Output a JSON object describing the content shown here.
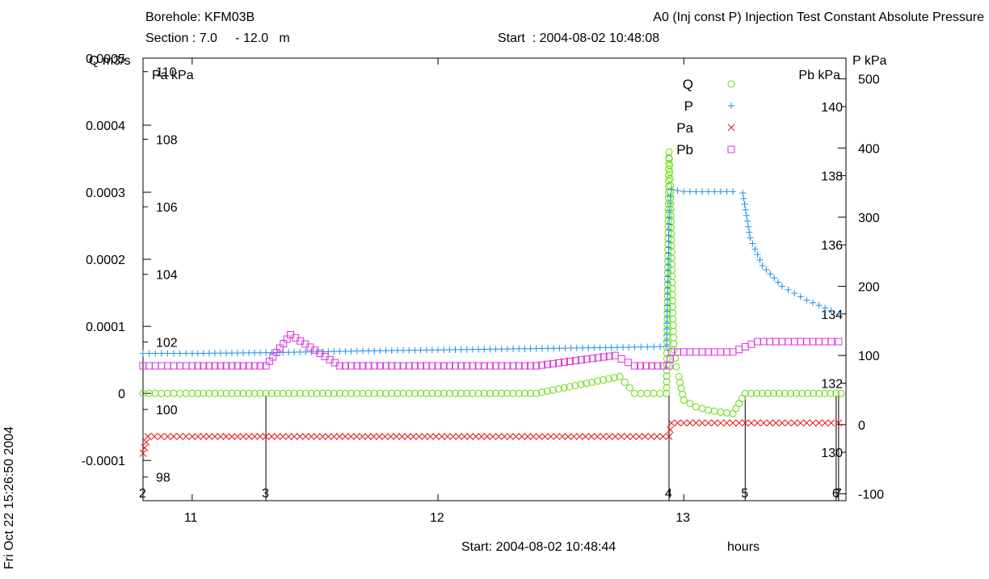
{
  "header": {
    "borehole": "Borehole: KFM03B",
    "section": "Section : 7.0     - 12.0   m",
    "test_title": "A0 (Inj const P) Injection Test Constant Absolute Pressure",
    "start_top": "Start  : 2004-08-02 10:48:08"
  },
  "footer": {
    "start_bottom": "Start: 2004-08-02 10:48:44",
    "hours_label": "hours",
    "timestamp": "Fri Oct 22 15:26:50 2004"
  },
  "colors": {
    "Q": "#66dd11",
    "P": "#1e90e8",
    "Pa": "#ee1111",
    "Pb": "#dd33dd",
    "axis": "#000000"
  },
  "chart_data": {
    "type": "scatter",
    "x_axis": {
      "label": "hours",
      "range": [
        10.8,
        13.66
      ],
      "ticks": [
        11,
        12,
        13
      ],
      "tick_labels": [
        "11",
        "12",
        "13"
      ]
    },
    "axes": {
      "Q": {
        "label": "Q  m3/s",
        "range": [
          -0.00016,
          0.0005
        ],
        "ticks": [
          -0.0001,
          0,
          0.0001,
          0.0002,
          0.0003,
          0.0004,
          0.0005
        ],
        "tick_labels": [
          "-0.0001",
          "0",
          "0.0001",
          "0.0002",
          "0.0003",
          "0.0004",
          "0.0005"
        ]
      },
      "Pa": {
        "label": "Pa  kPa",
        "range": [
          97.3,
          110.4
        ],
        "ticks": [
          98,
          100,
          102,
          104,
          106,
          108,
          110
        ],
        "tick_labels": [
          "98",
          "100",
          "102",
          "104",
          "106",
          "108",
          "110"
        ]
      },
      "P": {
        "label": "P  kPa",
        "range": [
          -110,
          530
        ],
        "ticks": [
          -100,
          0,
          100,
          200,
          300,
          400,
          500
        ],
        "tick_labels": [
          "-100",
          "0",
          "100",
          "200",
          "300",
          "400",
          "500"
        ]
      },
      "Pb": {
        "label": "Pb  kPa",
        "range": [
          128.6,
          141.4
        ],
        "ticks": [
          130,
          132,
          134,
          136,
          138,
          140
        ],
        "tick_labels": [
          "130",
          "132",
          "134",
          "136",
          "138",
          "140"
        ]
      }
    },
    "legend": {
      "placement": "top-right",
      "entries": [
        {
          "name": "Q",
          "marker": "circle"
        },
        {
          "name": "P",
          "marker": "plus"
        },
        {
          "name": "Pa",
          "marker": "cross"
        },
        {
          "name": "Pb",
          "marker": "square"
        }
      ]
    },
    "events": [
      {
        "label": "2",
        "x": 10.8
      },
      {
        "label": "3",
        "x": 11.3
      },
      {
        "label": "4",
        "x": 12.94
      },
      {
        "label": "5",
        "x": 13.25
      },
      {
        "label": "6",
        "x": 13.62
      },
      {
        "label": "7",
        "x": 13.63
      }
    ],
    "series": [
      {
        "name": "Q",
        "axis": "Q",
        "marker": "circle",
        "x": [
          10.8,
          11.0,
          11.3,
          11.6,
          12.0,
          12.4,
          12.74,
          12.8,
          12.93,
          12.94,
          12.945,
          12.95,
          12.955,
          12.96,
          12.97,
          12.98,
          13.0,
          13.05,
          13.1,
          13.15,
          13.2,
          13.25,
          13.62,
          13.64
        ],
        "y": [
          0.0,
          0.0,
          0.0,
          0.0,
          0.0,
          0.0,
          2.5e-05,
          0.0,
          0.0,
          0.00036,
          0.00031,
          0.00022,
          0.00012,
          6.5e-05,
          4e-05,
          2.5e-05,
          -1e-05,
          -2e-05,
          -2.5e-05,
          -2.8e-05,
          -3e-05,
          0.0,
          0.0,
          0.0
        ]
      },
      {
        "name": "P",
        "axis": "P",
        "marker": "plus",
        "x": [
          10.8,
          11.0,
          11.3,
          11.6,
          12.0,
          12.4,
          12.8,
          12.93,
          12.94,
          12.945,
          12.95,
          13.0,
          13.1,
          13.2,
          13.24,
          13.27,
          13.32,
          13.4,
          13.5,
          13.6,
          13.63
        ],
        "y": [
          103,
          103,
          104,
          106,
          108,
          110,
          112,
          113,
          290,
          330,
          340,
          337,
          337,
          337,
          335,
          270,
          230,
          200,
          180,
          165,
          160
        ]
      },
      {
        "name": "Pa",
        "axis": "Pa",
        "marker": "cross",
        "x": [
          10.8,
          10.82,
          10.9,
          11.0,
          11.3,
          11.6,
          11.9,
          12.2,
          12.6,
          12.94,
          12.95,
          13.05,
          13.15,
          13.2,
          13.3,
          13.35,
          13.4,
          13.45,
          13.5,
          13.55,
          13.6,
          13.63
        ],
        "y": [
          98.7,
          99.2,
          99.2,
          99.2,
          99.2,
          99.2,
          99.2,
          99.2,
          99.2,
          99.2,
          99.6,
          99.6,
          99.6,
          99.6,
          99.6,
          99.6,
          99.6,
          99.6,
          99.6,
          99.6,
          99.6,
          99.6
        ]
      },
      {
        "name": "Pb",
        "axis": "Pb",
        "marker": "square",
        "x": [
          10.8,
          11.0,
          11.3,
          11.4,
          11.6,
          12.0,
          12.4,
          12.72,
          12.8,
          12.94,
          12.95,
          13.0,
          13.2,
          13.3,
          13.45,
          13.6,
          13.63
        ],
        "y": [
          132.5,
          132.5,
          132.5,
          133.4,
          132.5,
          132.5,
          132.5,
          132.8,
          132.5,
          132.5,
          132.9,
          132.9,
          132.9,
          133.2,
          133.2,
          133.2,
          133.2
        ]
      }
    ]
  }
}
